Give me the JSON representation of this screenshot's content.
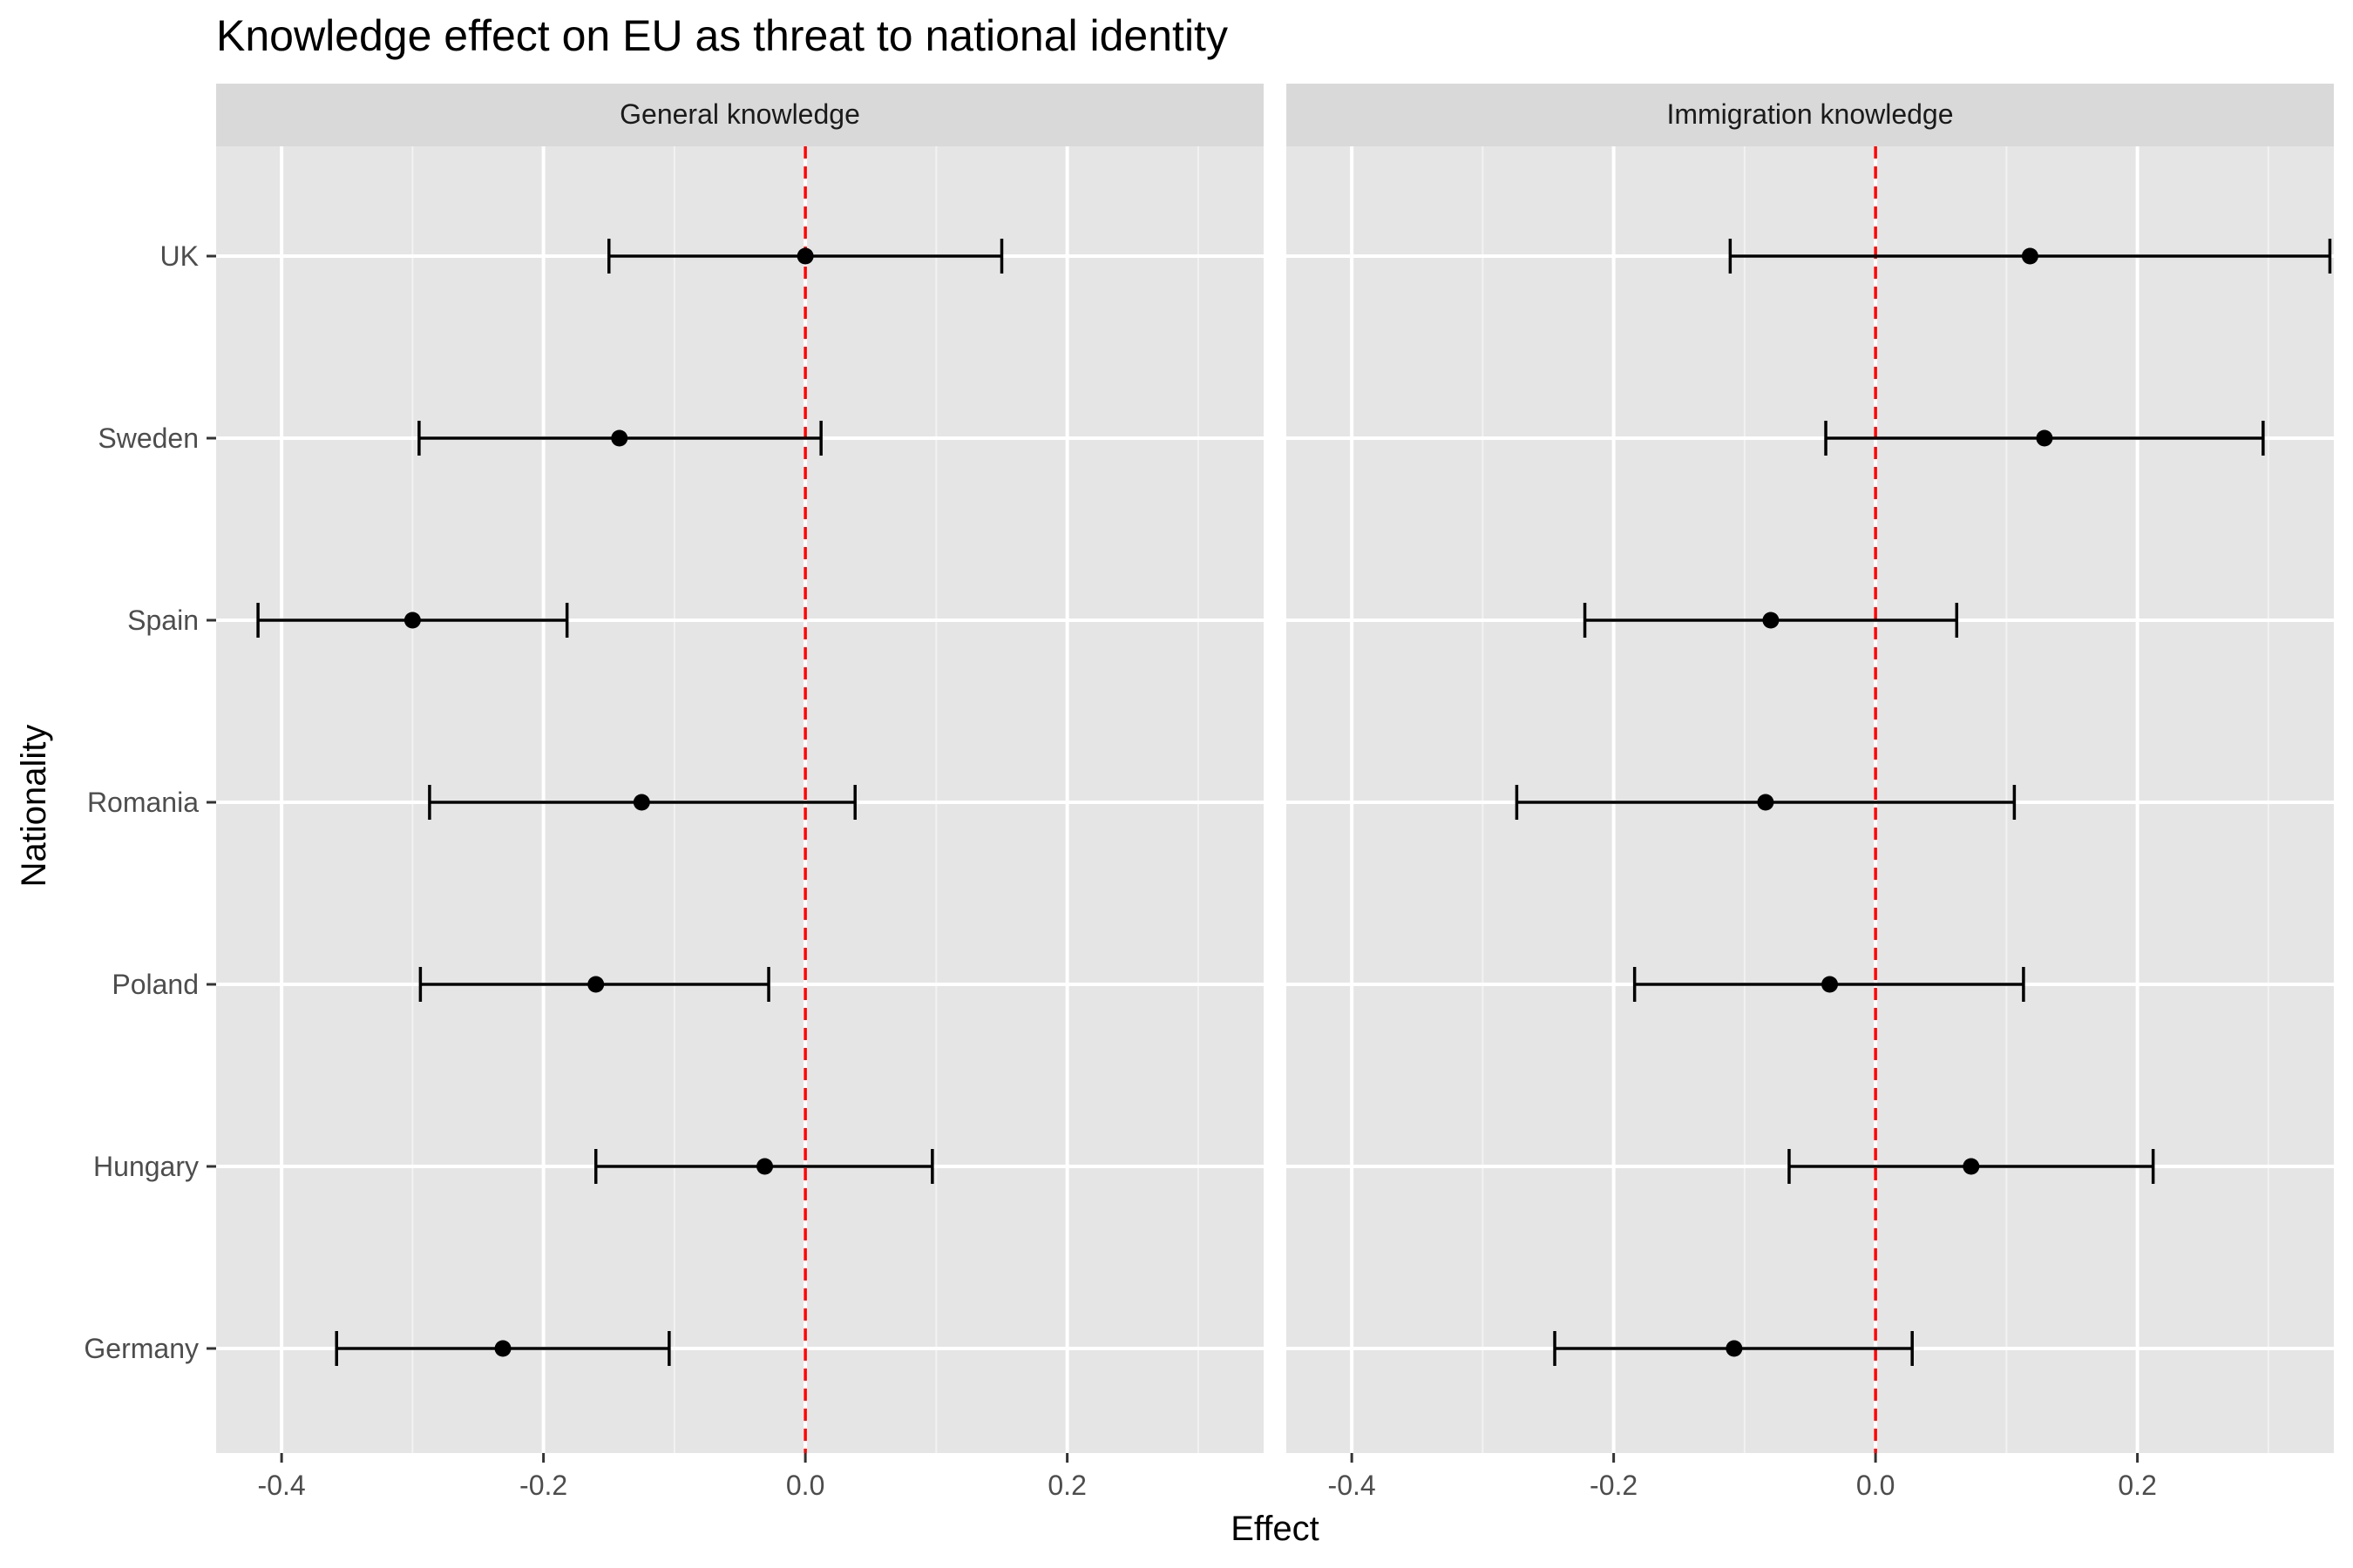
{
  "chart_data": {
    "type": "errorbar",
    "title": "Knowledge effect on EU as threat to national identity",
    "xlabel": "Effect",
    "ylabel": "Nationality",
    "xlim": [
      -0.45,
      0.35
    ],
    "x_ticks": [
      -0.4,
      -0.2,
      0.0,
      0.2
    ],
    "x_tick_labels": [
      "-0.4",
      "-0.2",
      "0.0",
      "0.2"
    ],
    "categories": [
      "UK",
      "Sweden",
      "Spain",
      "Romania",
      "Poland",
      "Hungary",
      "Germany"
    ],
    "reference_line": {
      "x": 0,
      "color": "#ff0000",
      "style": "dashed"
    },
    "grid": true,
    "panels": [
      {
        "label": "General knowledge",
        "points": [
          {
            "category": "UK",
            "estimate": 0.0,
            "lower": -0.15,
            "upper": 0.15
          },
          {
            "category": "Sweden",
            "estimate": -0.142,
            "lower": -0.295,
            "upper": 0.012
          },
          {
            "category": "Spain",
            "estimate": -0.3,
            "lower": -0.418,
            "upper": -0.182
          },
          {
            "category": "Romania",
            "estimate": -0.125,
            "lower": -0.287,
            "upper": 0.038
          },
          {
            "category": "Poland",
            "estimate": -0.16,
            "lower": -0.294,
            "upper": -0.028
          },
          {
            "category": "Hungary",
            "estimate": -0.031,
            "lower": -0.16,
            "upper": 0.097
          },
          {
            "category": "Germany",
            "estimate": -0.231,
            "lower": -0.358,
            "upper": -0.104
          }
        ]
      },
      {
        "label": "Immigration knowledge",
        "points": [
          {
            "category": "UK",
            "estimate": 0.118,
            "lower": -0.111,
            "upper": 0.347
          },
          {
            "category": "Sweden",
            "estimate": 0.129,
            "lower": -0.038,
            "upper": 0.296
          },
          {
            "category": "Spain",
            "estimate": -0.08,
            "lower": -0.222,
            "upper": 0.062
          },
          {
            "category": "Romania",
            "estimate": -0.084,
            "lower": -0.274,
            "upper": 0.106
          },
          {
            "category": "Poland",
            "estimate": -0.035,
            "lower": -0.184,
            "upper": 0.113
          },
          {
            "category": "Hungary",
            "estimate": 0.073,
            "lower": -0.066,
            "upper": 0.212
          },
          {
            "category": "Germany",
            "estimate": -0.108,
            "lower": -0.245,
            "upper": 0.028
          }
        ]
      }
    ],
    "colors": {
      "panel_background": "#e5e5e5",
      "strip_background": "#d9d9d9",
      "grid_major": "#ffffff",
      "grid_minor": "#f2f2f2",
      "point": "#000000",
      "reference": "#ff0000"
    }
  }
}
